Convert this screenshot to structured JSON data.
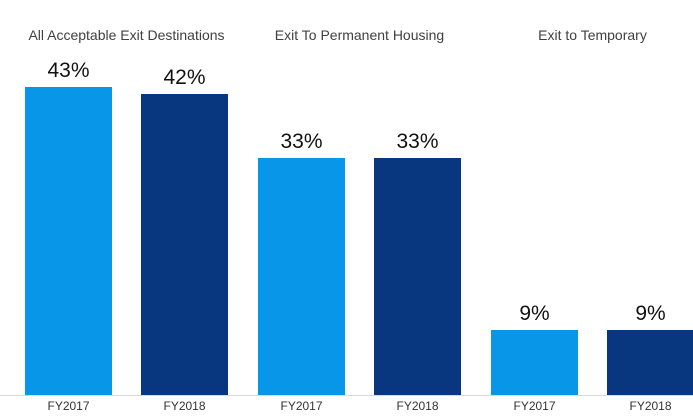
{
  "chart_data": {
    "type": "bar",
    "categories": [
      "All Acceptable Exit Destinations",
      "Exit To Permanent Housing",
      "Exit to Temporary"
    ],
    "series": [
      {
        "name": "FY2017",
        "color": "#0796e8",
        "values": [
          43,
          33,
          9
        ],
        "value_labels": [
          "43%",
          "33%",
          "9%"
        ]
      },
      {
        "name": "FY2018",
        "color": "#08367f",
        "values": [
          42,
          33,
          9
        ],
        "value_labels": [
          "42%",
          "33%",
          "9%"
        ]
      }
    ]
  }
}
